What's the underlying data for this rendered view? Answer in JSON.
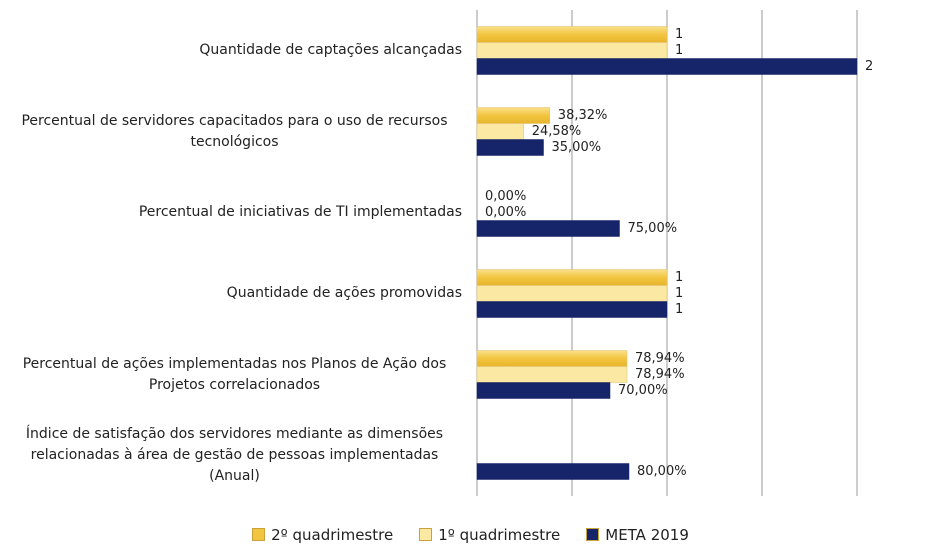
{
  "chart_data": {
    "type": "bar",
    "orientation": "horizontal",
    "categories": [
      "Quantidade de captações alcançadas",
      "Percentual de servidores capacitados para o uso de recursos tecnológicos",
      "Percentual de iniciativas de TI implementadas",
      "Quantidade de ações promovidas",
      "Percentual de ações implementadas nos Planos de Ação dos Projetos correlacionados",
      "Índice de satisfação dos servidores mediante as dimensões relacionadas à área de gestão de pessoas implementadas (Anual)"
    ],
    "series": [
      {
        "name": "2º quadrimestre",
        "color": "#f2c540",
        "values": [
          1,
          0.3832,
          0,
          1,
          0.7894,
          null
        ],
        "value_labels": [
          "1",
          "38,32%",
          "0,00%",
          "1",
          "78,94%",
          null
        ]
      },
      {
        "name": "1º quadrimestre",
        "color": "#fbe8a3",
        "values": [
          1,
          0.2458,
          0,
          1,
          0.7894,
          null
        ],
        "value_labels": [
          "1",
          "24,58%",
          "0,00%",
          "1",
          "78,94%",
          null
        ]
      },
      {
        "name": "META 2019",
        "color": "#16256a",
        "values": [
          2,
          0.35,
          0.75,
          1,
          0.7,
          0.8
        ],
        "value_labels": [
          "2",
          "35,00%",
          "75,00%",
          "1",
          "70,00%",
          "80,00%"
        ]
      }
    ],
    "xlim": [
      0,
      2
    ],
    "xticks": [
      0,
      0.5,
      1,
      1.5,
      2
    ],
    "grid": true,
    "legend": "bottom"
  }
}
